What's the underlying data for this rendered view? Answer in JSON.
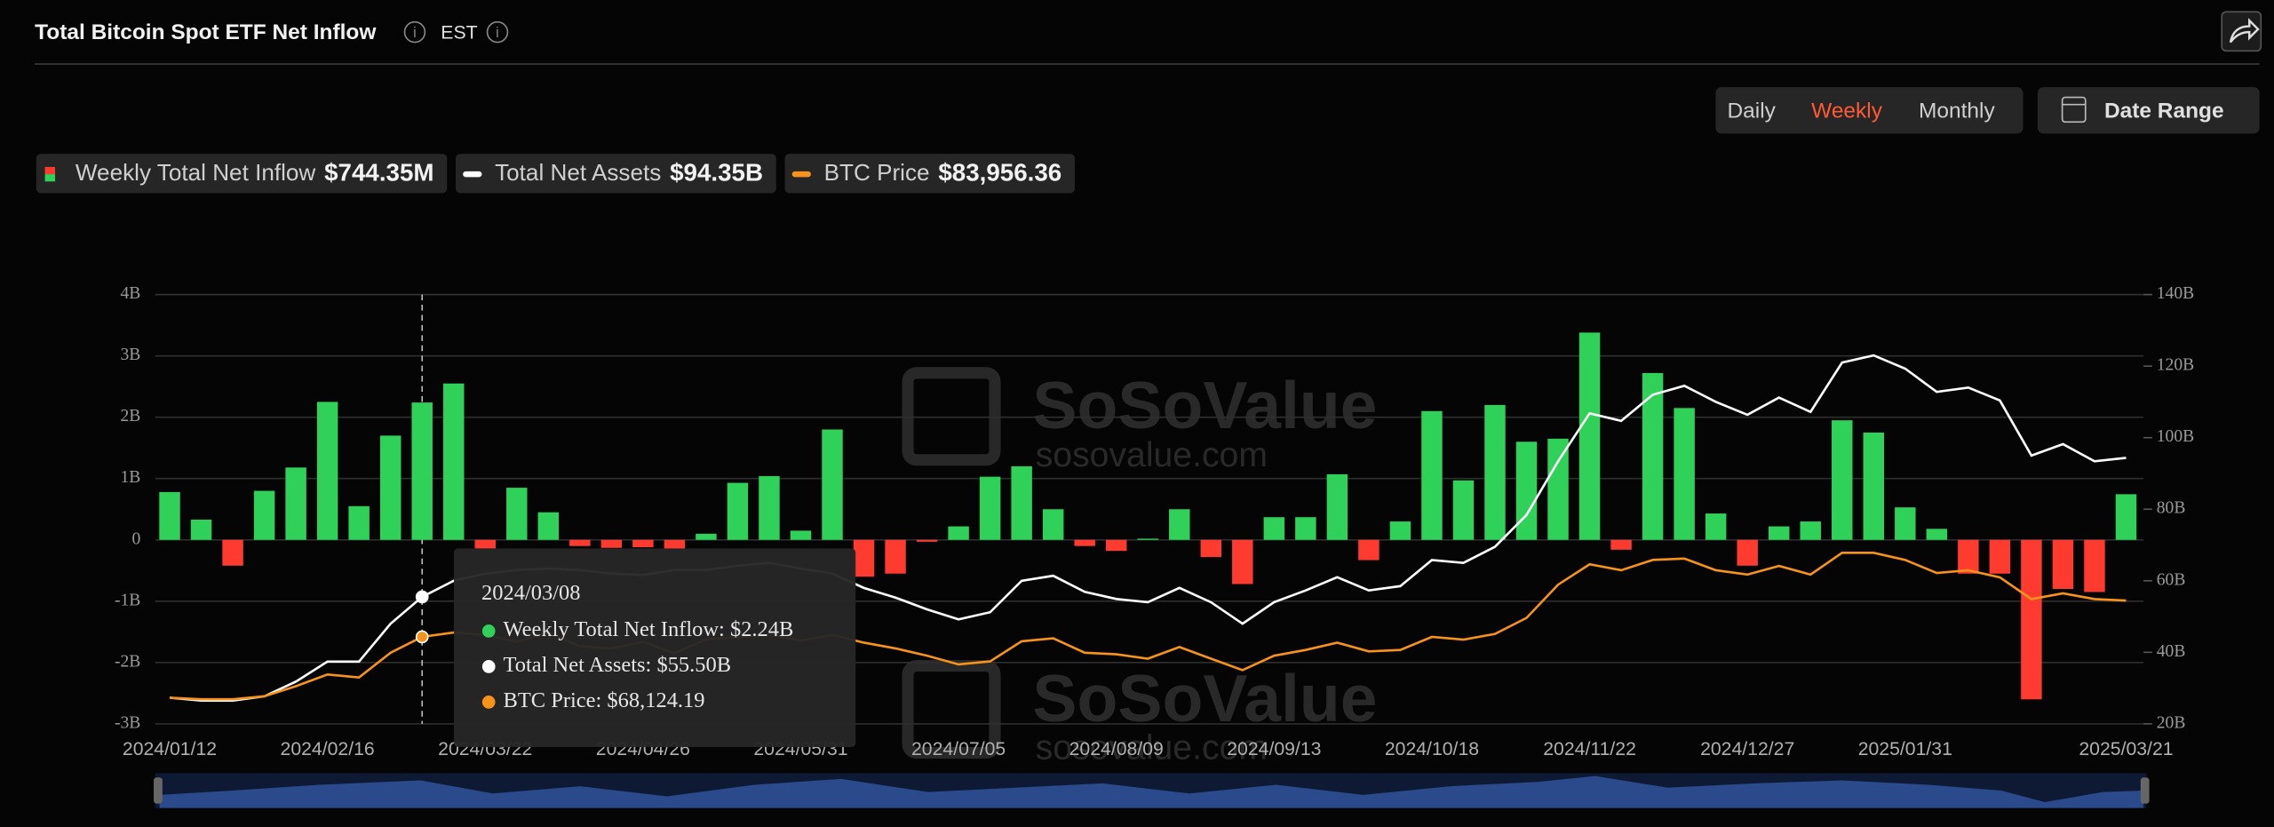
{
  "header": {
    "title": "Total Bitcoin Spot ETF Net Inflow",
    "timezone": "EST"
  },
  "controls": {
    "periods": [
      "Daily",
      "Weekly",
      "Monthly"
    ],
    "active": "Weekly",
    "date_range": "Date Range"
  },
  "watermark": [
    "SoSoValue",
    "sosovalue.com"
  ],
  "chart_data": {
    "type": "bar-line",
    "categories": [
      "2024/01/12",
      null,
      null,
      null,
      null,
      "2024/02/16",
      null,
      null,
      null,
      null,
      "2024/03/22",
      null,
      null,
      null,
      null,
      "2024/04/26",
      null,
      null,
      null,
      null,
      "2024/05/31",
      null,
      null,
      null,
      null,
      "2024/07/05",
      null,
      null,
      null,
      null,
      "2024/08/09",
      null,
      null,
      null,
      null,
      "2024/09/13",
      null,
      null,
      null,
      null,
      "2024/10/18",
      null,
      null,
      null,
      null,
      "2024/11/22",
      null,
      null,
      null,
      null,
      "2024/12/27",
      null,
      null,
      null,
      null,
      "2025/01/31",
      null,
      null,
      null,
      null,
      null,
      null,
      "2025/03/21"
    ],
    "series": [
      {
        "name": "Weekly Total Net Inflow",
        "type": "bar",
        "color": "#30d158",
        "negative_color": "#ff3b30",
        "latest_label": "$744.35M",
        "values": [
          0.78,
          0.33,
          -0.42,
          0.8,
          1.18,
          2.25,
          0.55,
          1.7,
          2.24,
          2.55,
          -0.14,
          0.85,
          0.45,
          -0.1,
          -0.13,
          -0.12,
          -0.15,
          0.1,
          0.93,
          1.04,
          0.15,
          1.8,
          -0.6,
          -0.55,
          -0.03,
          0.22,
          1.03,
          1.2,
          0.5,
          -0.1,
          -0.18,
          0.02,
          0.5,
          -0.28,
          -0.72,
          0.37,
          0.37,
          1.07,
          -0.33,
          0.3,
          2.1,
          0.97,
          2.2,
          1.6,
          1.65,
          3.38,
          -0.16,
          2.72,
          2.15,
          0.43,
          -0.42,
          0.22,
          0.3,
          1.95,
          1.75,
          0.53,
          0.18,
          -0.55,
          -0.55,
          -2.6,
          -0.8,
          -0.85,
          0.74435
        ]
      },
      {
        "name": "Total Net Assets",
        "type": "line",
        "axis": "y2",
        "color": "#ffffff",
        "latest_label": "$94.35B",
        "values": [
          27.3,
          26.5,
          26.5,
          27.7,
          31.8,
          37.4,
          37.4,
          48,
          55.5,
          60,
          62,
          63,
          63.4,
          63,
          62,
          61.6,
          63,
          63,
          64.2,
          65,
          63.4,
          62,
          58,
          55.3,
          52,
          49.2,
          51.2,
          60,
          61.4,
          56.9,
          54.9,
          54,
          58,
          54,
          48,
          54,
          57.3,
          61,
          57.3,
          58.5,
          65.8,
          65,
          69.5,
          78.4,
          93.4,
          106.8,
          104.7,
          112,
          114.5,
          110,
          106.4,
          111.2,
          107.2,
          121,
          123,
          119.3,
          112.8,
          114,
          110.4,
          95,
          98.2,
          93.4,
          94.35
        ]
      },
      {
        "name": "BTC Price",
        "type": "line",
        "axis": "y3",
        "color": "#f7931a",
        "latest_label": "$83,956.36",
        "values": [
          41550,
          40900,
          40900,
          42200,
          46600,
          51700,
          50400,
          61200,
          68124.19,
          70000,
          69000,
          66000,
          70000,
          64000,
          63000,
          66000,
          61000,
          67000,
          68000,
          69000,
          66500,
          69000,
          65600,
          63100,
          59900,
          56100,
          57400,
          66200,
          67500,
          61200,
          60500,
          58600,
          63700,
          58600,
          53600,
          59900,
          62400,
          65600,
          61800,
          62400,
          68100,
          66900,
          69400,
          76400,
          90900,
          99800,
          97200,
          101700,
          102300,
          97200,
          95300,
          99100,
          95300,
          104800,
          104800,
          101700,
          96000,
          97200,
          94100,
          84600,
          87100,
          84600,
          83956.36
        ]
      }
    ],
    "ylim": [
      -3,
      4
    ],
    "yticks": [
      {
        "value": -3,
        "label": "-3B"
      },
      {
        "value": -2,
        "label": "-2B"
      },
      {
        "value": -1,
        "label": "-1B"
      },
      0,
      {
        "value": 1,
        "label": "1B"
      },
      {
        "value": 2,
        "label": "2B"
      },
      {
        "value": 3,
        "label": "3B"
      },
      {
        "value": 4,
        "label": "4B"
      }
    ],
    "y2lim": [
      20,
      140
    ],
    "y2ticks": [
      {
        "value": 20,
        "label": "20B"
      },
      {
        "value": 40,
        "label": "40B"
      },
      {
        "value": 60,
        "label": "60B"
      },
      {
        "value": 80,
        "label": "80B"
      },
      {
        "value": 100,
        "label": "100B"
      },
      {
        "value": 120,
        "label": "120B"
      },
      {
        "value": 140,
        "label": "140B"
      }
    ],
    "y3lim": [
      30150,
      217520
    ],
    "grid": true,
    "tooltip": {
      "index": 8,
      "date": "2024/03/08",
      "rows": [
        "Weekly Total Net Inflow: $2.24B",
        "Total Net Assets: $55.50B",
        "BTC Price: $68,124.19"
      ]
    }
  }
}
